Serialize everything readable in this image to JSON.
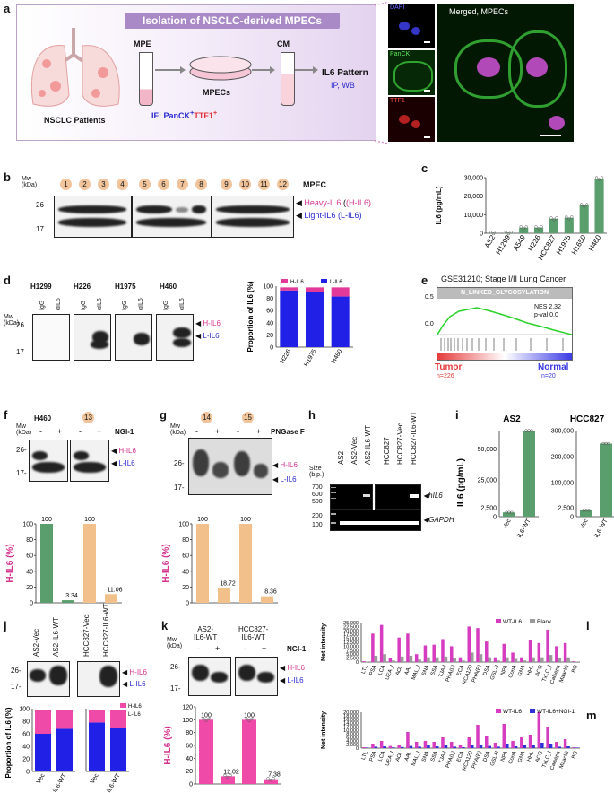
{
  "panels": [
    "a",
    "b",
    "c",
    "d",
    "e",
    "f",
    "g",
    "h",
    "i",
    "j",
    "k",
    "l",
    "m"
  ],
  "a": {
    "title": "Isolation of NSCLC-derived MPECs",
    "patients": "NSCLC Patients",
    "mpe": "MPE",
    "mpecs": "MPECs",
    "cm": "CM",
    "pattern": "IL6 Pattern",
    "ipwb": "IP, WB",
    "if_text": "IF: PanCK",
    "if_plus1": "+",
    "if_ttf": "TTF1",
    "if_plus2": "+",
    "dapi": "DAPI",
    "panck": "PanCK",
    "ttf1": "TTF1",
    "merged": "Merged, MPECs"
  },
  "b": {
    "mw": "Mw\n(kDa)",
    "mw_label1": "Mw",
    "mw_label2": "(kDa)",
    "markers": [
      "26",
      "17"
    ],
    "numbers": [
      "1",
      "2",
      "3",
      "4",
      "5",
      "6",
      "7",
      "8",
      "9",
      "10",
      "11",
      "12"
    ],
    "title": "MPEC",
    "heavy": "Heavy-IL6",
    "heavy_abbr": "(H-IL6)",
    "light": "Light-IL6",
    "light_abbr": "(L-IL6)"
  },
  "c": {
    "ylabel": "IL6 (pg/mL)",
    "chart_data": {
      "type": "bar",
      "categories": [
        "AS2",
        "H1299",
        "A549",
        "H226",
        "HCC827",
        "H1975",
        "H1650",
        "H460"
      ],
      "values": [
        200,
        200,
        3000,
        3000,
        7800,
        8300,
        15000,
        29500
      ],
      "ylim": [
        0,
        30000
      ],
      "yticks": [
        "0",
        "10,000",
        "20,000",
        "30,000"
      ]
    }
  },
  "d": {
    "cells": [
      "H1299",
      "H226",
      "H1975",
      "H460"
    ],
    "lanes": [
      "IgG",
      "αIL6"
    ],
    "markers": [
      "26",
      "17"
    ],
    "h": "H-IL6",
    "l": "L-IL6",
    "ylabel": "Proportion of IL6 (%)",
    "legend_h": "H-IL6",
    "legend_l": "L-IL6",
    "chart_data": {
      "type": "bar",
      "categories": [
        "H226",
        "H1975",
        "H460"
      ],
      "series": [
        {
          "name": "L-IL6",
          "values": [
            93,
            90,
            83
          ]
        },
        {
          "name": "H-IL6",
          "values": [
            5,
            8,
            15
          ]
        }
      ],
      "ylim": [
        0,
        100
      ],
      "yticks": [
        "0",
        "20",
        "40",
        "60",
        "80",
        "100"
      ]
    }
  },
  "e": {
    "title": "GSE31210; Stage I/II Lung Cancer",
    "gene_set": "N_LINKED_GLYCOSYLATION",
    "nes": "NES 2.32",
    "pval": "p-val 0.0",
    "y1": "0.5",
    "y0": "0.0",
    "tumor": "Tumor",
    "tumor_n": "n=226",
    "normal": "Normal",
    "normal_n": "n=20"
  },
  "f": {
    "cell": "H460",
    "sample": "13",
    "treatment": "NGI-1",
    "minus": "-",
    "plus": "+",
    "h": "H-IL6",
    "l": "L-IL6",
    "ylabel": "H-IL6 (%)",
    "chart_data": {
      "type": "bar",
      "categories": [
        "H460 -",
        "H460 +",
        "13 -",
        "13 +"
      ],
      "values": [
        100,
        3.34,
        100,
        11.06
      ],
      "labels": [
        "100",
        "3.34",
        "100",
        "11.06"
      ],
      "ylim": [
        0,
        100
      ],
      "yticks": [
        "0",
        "20",
        "40",
        "60",
        "80",
        "100"
      ]
    }
  },
  "g": {
    "samples": [
      "14",
      "15"
    ],
    "treatment": "PNGase F",
    "h": "H-IL6",
    "l": "L-IL6",
    "ylabel": "H-IL6 (%)",
    "chart_data": {
      "type": "bar",
      "categories": [
        "14 -",
        "14 +",
        "15 -",
        "15 +"
      ],
      "values": [
        100,
        18.72,
        100,
        8.36
      ],
      "labels": [
        "100",
        "18.72",
        "100",
        "8.36"
      ],
      "ylim": [
        0,
        100
      ],
      "yticks": [
        "0",
        "20",
        "40",
        "60",
        "80",
        "100"
      ]
    }
  },
  "h": {
    "lanes": [
      "AS2",
      "AS2-Vec",
      "AS2-IL6-WT",
      "HCC827",
      "HCC827-Vec",
      "HCC827-IL6-WT"
    ],
    "size": "Size",
    "bp": "(b.p.)",
    "sizes": [
      "700",
      "600",
      "500",
      "200",
      "100"
    ],
    "hil6": "hIL6",
    "gapdh": "GAPDH"
  },
  "i": {
    "ylabel": "IL6 (pg/mL)",
    "left": {
      "title": "AS2",
      "chart_data": {
        "type": "bar",
        "categories": [
          "Vec",
          "IL6-WT"
        ],
        "values": [
          1200,
          65000
        ],
        "yticks": [
          "0",
          "2,500",
          "25,000",
          "50,000"
        ]
      }
    },
    "right": {
      "title": "HCC827",
      "chart_data": {
        "type": "bar",
        "categories": [
          "Vec",
          "IL6-WT"
        ],
        "values": [
          1800,
          250000
        ],
        "yticks": [
          "0",
          "2,500",
          "100,000",
          "200,000",
          "300,000"
        ]
      }
    }
  },
  "j": {
    "lanes": [
      "AS2-Vec",
      "AS2-IL6-WT",
      "HCC827-Vec",
      "HCC827-IL6-WT"
    ],
    "markers": [
      "26",
      "17"
    ],
    "h": "H-IL6",
    "l": "L-IL6",
    "ylabel": "Proportion of IL6 (%)",
    "legend_h": "H-IL6",
    "legend_l": "L-IL6",
    "chart_data": [
      {
        "type": "bar",
        "categories": [
          "Vec",
          "IL6-WT"
        ],
        "series": [
          {
            "name": "L-IL6",
            "values": [
              60,
              68
            ]
          },
          {
            "name": "H-IL6",
            "values": [
              38,
              30
            ]
          }
        ],
        "yticks": [
          "0",
          "20",
          "40",
          "60",
          "80",
          "100"
        ]
      },
      {
        "type": "bar",
        "categories": [
          "Vec",
          "IL6-WT"
        ],
        "series": [
          {
            "name": "L-IL6",
            "values": [
              78,
              70
            ]
          },
          {
            "name": "H-IL6",
            "values": [
              20,
              28
            ]
          }
        ],
        "yticks": [
          "0",
          "20",
          "40",
          "60",
          "80",
          "100"
        ]
      }
    ]
  },
  "k": {
    "groups": [
      "AS2-\nIL6-WT",
      "HCC827-\nIL6-WT"
    ],
    "g1a": "AS2-",
    "g1b": "IL6-WT",
    "g2a": "HCC827-",
    "g2b": "IL6-WT",
    "treatment": "NGI-1",
    "markers": [
      "26",
      "17"
    ],
    "h": "H-IL6",
    "l": "L-IL6",
    "ylabel": "H-IL6 (%)",
    "chart_data": {
      "type": "bar",
      "categories": [
        "AS2 -",
        "AS2 +",
        "HCC827 -",
        "HCC827 +"
      ],
      "values": [
        100,
        12.02,
        100,
        7.38
      ],
      "labels": [
        "100",
        "12.02",
        "100",
        "7.38"
      ],
      "ylim": [
        0,
        120
      ],
      "yticks": [
        "0",
        "20",
        "40",
        "60",
        "80",
        "100",
        "120"
      ]
    }
  },
  "l": {
    "ylabel": "Net intensity",
    "legend": [
      "WT-IL6",
      "Blank"
    ],
    "chart_data": {
      "type": "bar",
      "categories": [
        "LTL",
        "PSA",
        "LCA",
        "UEA_I",
        "AOL",
        "AAL",
        "MAL_I",
        "SNA",
        "SSA",
        "TJA-I",
        "PHA(L)",
        "ECA",
        "RCA120",
        "PHA(E)",
        "DSA",
        "GSL-II",
        "NPA",
        "ConA",
        "GNA",
        "HHL",
        "ACG",
        "TxLC_I",
        "Calsepa",
        "Maackii",
        "BG"
      ],
      "yticks": [
        "0",
        "2,500",
        "5,000",
        "7,500",
        "10,000",
        "12,500",
        "15,000",
        "17,500",
        "20,000",
        "22,500",
        "25,000"
      ],
      "series": [
        {
          "name": "WT-IL6",
          "values": [
            500,
            18000,
            23500,
            2500,
            15500,
            18000,
            5000,
            10500,
            11000,
            14500,
            10000,
            3000,
            22500,
            21500,
            13000,
            3000,
            11500,
            6000,
            3000,
            14000,
            12000,
            20500,
            10000,
            12000,
            500
          ]
        },
        {
          "name": "Blank",
          "values": [
            300,
            4000,
            5000,
            1000,
            3500,
            4000,
            1500,
            3000,
            3000,
            3500,
            2500,
            1000,
            6000,
            5000,
            3000,
            1000,
            3000,
            2000,
            1000,
            3000,
            3000,
            4500,
            2500,
            3000,
            300
          ]
        }
      ]
    }
  },
  "m": {
    "ylabel": "Net intensity",
    "legend": [
      "WT-IL6",
      "WT-IL6+NGI-1"
    ],
    "chart_data": {
      "type": "bar",
      "categories": [
        "LTL",
        "PSA",
        "LCA",
        "UEA_I",
        "AOL",
        "AAL",
        "MAL_I",
        "SNA",
        "SSA",
        "TJA-I",
        "PHA(L)",
        "ECA",
        "RCA120",
        "PHA(E)",
        "DSA",
        "GSL-II",
        "NPA",
        "ConA",
        "GNA",
        "HHL",
        "ACG",
        "TxLC_I",
        "Calsepa",
        "Maackii",
        "BG"
      ],
      "yticks": [
        "0",
        "2,000",
        "4,000",
        "6,000",
        "8,000",
        "10,000",
        "12,000",
        "14,000",
        "16,000",
        "18,000",
        "20,000"
      ],
      "series": [
        {
          "name": "WT-IL6",
          "values": [
            500,
            2500,
            4000,
            1200,
            2000,
            9000,
            3500,
            4000,
            3500,
            6000,
            3500,
            1500,
            6000,
            13000,
            6500,
            3000,
            13500,
            4000,
            6000,
            7500,
            20000,
            12000,
            3500,
            5000,
            500
          ]
        },
        {
          "name": "WT-IL6+NGI-1",
          "values": [
            300,
            800,
            1000,
            400,
            600,
            1200,
            800,
            1500,
            1000,
            1500,
            800,
            500,
            2000,
            2000,
            1200,
            800,
            2500,
            1000,
            1500,
            1500,
            3000,
            2500,
            800,
            1000,
            300
          ]
        }
      ]
    }
  },
  "colors": {
    "pink": "#d6338f",
    "blue": "#2a2ad0",
    "green": "#5a9e6e",
    "orange": "#f2c08a",
    "lightpink": "#f04aa8"
  }
}
